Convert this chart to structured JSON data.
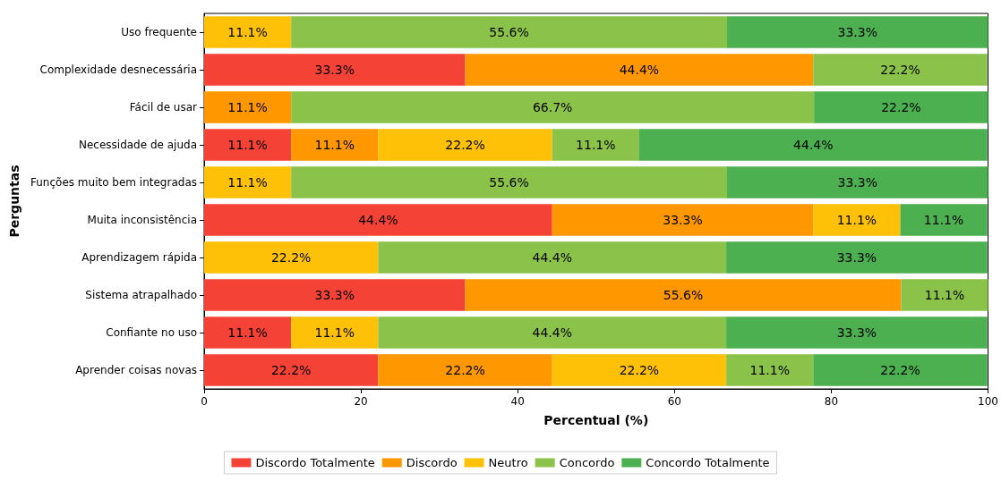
{
  "chart_data": {
    "type": "bar",
    "orientation": "horizontal",
    "stacked": true,
    "xlabel": "Percentual (%)",
    "ylabel": "Perguntas",
    "categories": [
      "Uso frequente",
      "Complexidade desnecessária",
      "Fácil de usar",
      "Necessidade de ajuda",
      "Funções muito bem integradas",
      "Muita inconsistência",
      "Aprendizagem rápida",
      "Sistema atrapalhado",
      "Confiante no uso",
      "Aprender coisas novas"
    ],
    "series": [
      {
        "name": "Discordo Totalmente",
        "color": "#f44336",
        "values": [
          null,
          33.3,
          null,
          11.1,
          null,
          44.4,
          null,
          33.3,
          11.1,
          22.2
        ],
        "value_labels": [
          null,
          "33.3%",
          null,
          "11.1%",
          null,
          "44.4%",
          null,
          "33.3%",
          "11.1%",
          "22.2%"
        ]
      },
      {
        "name": "Discordo",
        "color": "#ff9800",
        "values": [
          null,
          44.4,
          11.1,
          11.1,
          null,
          33.3,
          null,
          55.6,
          null,
          22.2
        ],
        "value_labels": [
          null,
          "44.4%",
          "11.1%",
          "11.1%",
          null,
          "33.3%",
          null,
          "55.6%",
          null,
          "22.2%"
        ]
      },
      {
        "name": "Neutro",
        "color": "#ffc107",
        "values": [
          11.1,
          null,
          null,
          22.2,
          11.1,
          11.1,
          22.2,
          null,
          11.1,
          22.2
        ],
        "value_labels": [
          "11.1%",
          null,
          null,
          "22.2%",
          "11.1%",
          "11.1%",
          "22.2%",
          null,
          "11.1%",
          "22.2%"
        ]
      },
      {
        "name": "Concordo",
        "color": "#8bc34a",
        "values": [
          55.6,
          22.2,
          66.7,
          11.1,
          55.6,
          null,
          44.4,
          11.1,
          44.4,
          11.1
        ],
        "value_labels": [
          "55.6%",
          "22.2%",
          "66.7%",
          "11.1%",
          "55.6%",
          null,
          "44.4%",
          "11.1%",
          "44.4%",
          "11.1%"
        ]
      },
      {
        "name": "Concordo Totalmente",
        "color": "#4caf50",
        "values": [
          33.3,
          null,
          22.2,
          44.4,
          33.3,
          11.1,
          33.3,
          null,
          33.3,
          22.2
        ],
        "value_labels": [
          "33.3%",
          null,
          "22.2%",
          "44.4%",
          "33.3%",
          "11.1%",
          "33.3%",
          null,
          "33.3%",
          "22.2%"
        ]
      }
    ],
    "xlim": [
      0,
      100
    ],
    "xticks": [
      0,
      20,
      40,
      60,
      80,
      100
    ],
    "legend": "bottom"
  }
}
